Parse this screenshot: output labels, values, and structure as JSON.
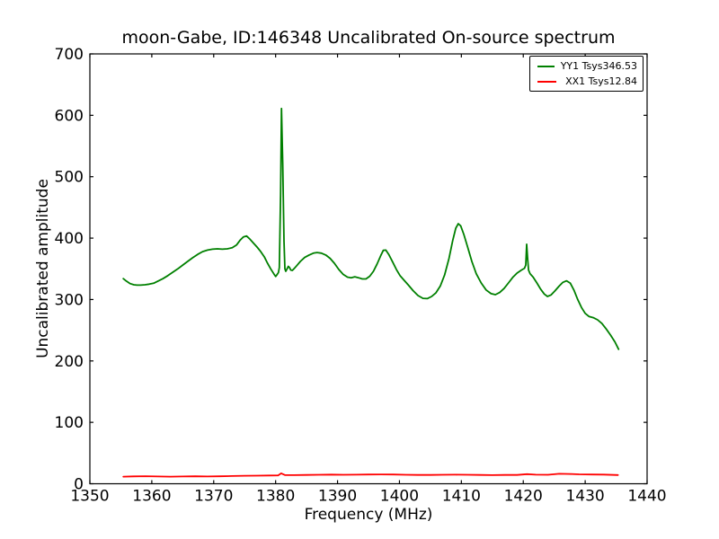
{
  "colors": {
    "background": "#ffffff",
    "axis": "#000000",
    "series_green": "#008000",
    "series_red": "#ff0000"
  },
  "chart_data": {
    "type": "line",
    "title": "moon-Gabe, ID:146348 Uncalibrated On-source spectrum",
    "xlabel": "Frequency (MHz)",
    "ylabel": "Uncalibrated amplitude",
    "xlim": [
      1350,
      1440
    ],
    "ylim": [
      0,
      700
    ],
    "xticks": [
      1350,
      1360,
      1370,
      1380,
      1390,
      1400,
      1410,
      1420,
      1430,
      1440
    ],
    "yticks": [
      0,
      100,
      200,
      300,
      400,
      500,
      600,
      700
    ],
    "grid": false,
    "legend_position": "top-right",
    "series": [
      {
        "name": "YY1 Tsys346.53",
        "color": "#008000",
        "points": [
          [
            1355.4,
            334
          ],
          [
            1355.9,
            330
          ],
          [
            1356.5,
            326
          ],
          [
            1357.1,
            324
          ],
          [
            1357.6,
            323.5
          ],
          [
            1358.2,
            323.5
          ],
          [
            1358.9,
            324
          ],
          [
            1359.6,
            325
          ],
          [
            1360.3,
            326.5
          ],
          [
            1361.0,
            330
          ],
          [
            1361.8,
            334
          ],
          [
            1362.6,
            339
          ],
          [
            1363.4,
            344.5
          ],
          [
            1364.2,
            350
          ],
          [
            1365.0,
            356
          ],
          [
            1365.8,
            362
          ],
          [
            1366.6,
            368
          ],
          [
            1367.4,
            373.5
          ],
          [
            1368.2,
            378
          ],
          [
            1369.0,
            380.5
          ],
          [
            1369.8,
            382
          ],
          [
            1370.6,
            382.5
          ],
          [
            1371.4,
            382
          ],
          [
            1372.2,
            382.5
          ],
          [
            1373.0,
            384.5
          ],
          [
            1373.7,
            389
          ],
          [
            1374.3,
            397
          ],
          [
            1374.8,
            402
          ],
          [
            1375.3,
            403.5
          ],
          [
            1375.8,
            399
          ],
          [
            1376.4,
            392
          ],
          [
            1377.0,
            385.5
          ],
          [
            1377.6,
            378
          ],
          [
            1378.2,
            369
          ],
          [
            1378.7,
            359
          ],
          [
            1379.2,
            350
          ],
          [
            1379.7,
            342
          ],
          [
            1380.0,
            337.5
          ],
          [
            1380.2,
            340
          ],
          [
            1380.45,
            344
          ],
          [
            1380.6,
            352
          ],
          [
            1380.8,
            470
          ],
          [
            1380.95,
            611
          ],
          [
            1381.15,
            520
          ],
          [
            1381.35,
            395
          ],
          [
            1381.5,
            350
          ],
          [
            1381.65,
            346
          ],
          [
            1381.85,
            350
          ],
          [
            1382.05,
            354
          ],
          [
            1382.25,
            352
          ],
          [
            1382.45,
            348
          ],
          [
            1382.7,
            347.5
          ],
          [
            1382.95,
            350
          ],
          [
            1383.4,
            355
          ],
          [
            1384.0,
            362
          ],
          [
            1384.7,
            368.5
          ],
          [
            1385.4,
            372.5
          ],
          [
            1386.1,
            375.5
          ],
          [
            1386.7,
            376.5
          ],
          [
            1387.4,
            375.5
          ],
          [
            1388.1,
            372.5
          ],
          [
            1388.8,
            367
          ],
          [
            1389.5,
            359
          ],
          [
            1390.2,
            349
          ],
          [
            1390.9,
            341
          ],
          [
            1391.6,
            336.5
          ],
          [
            1392.2,
            335.5
          ],
          [
            1392.8,
            337
          ],
          [
            1393.4,
            335.5
          ],
          [
            1394.0,
            333.5
          ],
          [
            1394.6,
            333.5
          ],
          [
            1395.2,
            338
          ],
          [
            1395.8,
            346
          ],
          [
            1396.4,
            358
          ],
          [
            1397.0,
            372
          ],
          [
            1397.4,
            380
          ],
          [
            1397.8,
            380.5
          ],
          [
            1398.3,
            373
          ],
          [
            1398.9,
            361
          ],
          [
            1399.5,
            349
          ],
          [
            1400.1,
            339
          ],
          [
            1400.7,
            332
          ],
          [
            1401.4,
            324
          ],
          [
            1402.2,
            314.5
          ],
          [
            1403.0,
            306.5
          ],
          [
            1403.8,
            302
          ],
          [
            1404.5,
            301.5
          ],
          [
            1405.2,
            305
          ],
          [
            1405.9,
            311
          ],
          [
            1406.6,
            322
          ],
          [
            1407.3,
            340
          ],
          [
            1408.0,
            367
          ],
          [
            1408.6,
            396
          ],
          [
            1409.1,
            416
          ],
          [
            1409.5,
            423.5
          ],
          [
            1409.9,
            420
          ],
          [
            1410.4,
            406
          ],
          [
            1411.0,
            386
          ],
          [
            1411.7,
            362
          ],
          [
            1412.4,
            342
          ],
          [
            1413.2,
            327
          ],
          [
            1414.0,
            315.5
          ],
          [
            1414.8,
            309.5
          ],
          [
            1415.5,
            308
          ],
          [
            1416.2,
            311.5
          ],
          [
            1416.9,
            318
          ],
          [
            1417.6,
            327
          ],
          [
            1418.3,
            336
          ],
          [
            1419.0,
            343
          ],
          [
            1419.7,
            348
          ],
          [
            1420.2,
            351
          ],
          [
            1420.4,
            356
          ],
          [
            1420.55,
            390
          ],
          [
            1420.7,
            368
          ],
          [
            1420.85,
            348
          ],
          [
            1421.1,
            342
          ],
          [
            1421.6,
            336.5
          ],
          [
            1422.2,
            327
          ],
          [
            1422.8,
            317
          ],
          [
            1423.4,
            309
          ],
          [
            1423.9,
            305
          ],
          [
            1424.5,
            307.5
          ],
          [
            1425.1,
            314
          ],
          [
            1425.8,
            322
          ],
          [
            1426.4,
            328
          ],
          [
            1427.0,
            330.5
          ],
          [
            1427.6,
            326.5
          ],
          [
            1428.2,
            315
          ],
          [
            1428.8,
            300
          ],
          [
            1429.4,
            287
          ],
          [
            1430.0,
            277.5
          ],
          [
            1430.6,
            272.5
          ],
          [
            1431.3,
            270.5
          ],
          [
            1432.0,
            267
          ],
          [
            1432.7,
            261
          ],
          [
            1433.4,
            252
          ],
          [
            1434.1,
            242
          ],
          [
            1434.8,
            231
          ],
          [
            1435.4,
            219
          ]
        ]
      },
      {
        "name": "XX1 Tsys12.84",
        "color": "#ff0000",
        "points": [
          [
            1355.4,
            11.5
          ],
          [
            1357,
            12
          ],
          [
            1359,
            12.3
          ],
          [
            1361,
            11.9
          ],
          [
            1363,
            11.5
          ],
          [
            1365,
            11.8
          ],
          [
            1367,
            12.1
          ],
          [
            1369,
            11.8
          ],
          [
            1371,
            12.2
          ],
          [
            1373,
            12.6
          ],
          [
            1375,
            13
          ],
          [
            1377,
            13.2
          ],
          [
            1379,
            13.4
          ],
          [
            1380.4,
            13.6
          ],
          [
            1380.9,
            17
          ],
          [
            1381.5,
            14.2
          ],
          [
            1383,
            14
          ],
          [
            1385,
            14.3
          ],
          [
            1387,
            14.6
          ],
          [
            1389,
            14.9
          ],
          [
            1391,
            14.7
          ],
          [
            1393,
            14.8
          ],
          [
            1395,
            15
          ],
          [
            1397,
            15.2
          ],
          [
            1399,
            15.1
          ],
          [
            1401,
            14.7
          ],
          [
            1403,
            14.3
          ],
          [
            1405,
            14.4
          ],
          [
            1407,
            14.6
          ],
          [
            1409,
            14.8
          ],
          [
            1411,
            14.6
          ],
          [
            1413,
            14.3
          ],
          [
            1415,
            14.1
          ],
          [
            1417,
            14.3
          ],
          [
            1419,
            14.4
          ],
          [
            1420.6,
            15.6
          ],
          [
            1422,
            14.8
          ],
          [
            1424,
            14.6
          ],
          [
            1425.8,
            16.3
          ],
          [
            1427.5,
            15.9
          ],
          [
            1429,
            15.4
          ],
          [
            1431,
            15.1
          ],
          [
            1433,
            14.9
          ],
          [
            1435.3,
            14.2
          ]
        ]
      }
    ]
  }
}
